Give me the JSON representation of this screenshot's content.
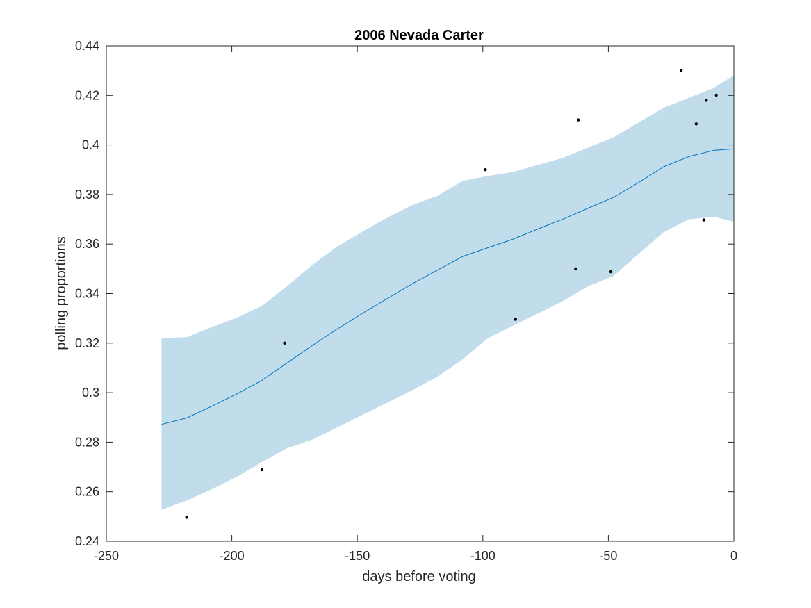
{
  "chart_data": {
    "type": "line",
    "title": "2006 Nevada Carter",
    "xlabel": "days before voting",
    "ylabel": "polling proportions",
    "xlim": [
      -250,
      0
    ],
    "ylim": [
      0.24,
      0.44
    ],
    "xticks": [
      -250,
      -200,
      -150,
      -100,
      -50,
      0
    ],
    "yticks": [
      0.24,
      0.26,
      0.28,
      0.3,
      0.32,
      0.34,
      0.36,
      0.38,
      0.4,
      0.42,
      0.44
    ],
    "xtick_labels": [
      "-250",
      "-200",
      "-150",
      "-100",
      "-50",
      "0"
    ],
    "ytick_labels": [
      "0.24",
      "0.26",
      "0.28",
      "0.3",
      "0.32",
      "0.34",
      "0.36",
      "0.38",
      "0.4",
      "0.42",
      "0.44"
    ],
    "grid": false,
    "colors": {
      "mean_line": "#0072BD",
      "band_fill": "#C1DDEB",
      "points": "#000000",
      "axes": "#262626"
    },
    "series": [
      {
        "kind": "line",
        "x": [
          -228,
          -218,
          -208,
          -198,
          -188,
          -178,
          -168,
          -158,
          -148,
          -138,
          -128,
          -118,
          -108,
          -98,
          -88,
          -78,
          -68,
          -58,
          -48,
          -38,
          -28,
          -18,
          -8,
          0
        ],
        "y": [
          0.2872,
          0.2898,
          0.2945,
          0.2995,
          0.305,
          0.312,
          0.319,
          0.3257,
          0.332,
          0.338,
          0.344,
          0.3495,
          0.355,
          0.3585,
          0.362,
          0.3661,
          0.3701,
          0.3745,
          0.3788,
          0.3848,
          0.3912,
          0.3953,
          0.3978,
          0.3984
        ]
      },
      {
        "kind": "band",
        "x": [
          -228,
          -218,
          -208,
          -198,
          -188,
          -178,
          -168,
          -158,
          -148,
          -138,
          -128,
          -118,
          -108,
          -98,
          -88,
          -78,
          -68,
          -58,
          -48,
          -38,
          -28,
          -18,
          -8,
          0
        ],
        "upper": [
          0.322,
          0.3224,
          0.3265,
          0.3302,
          0.335,
          0.343,
          0.3515,
          0.359,
          0.365,
          0.3707,
          0.3758,
          0.3795,
          0.3855,
          0.3875,
          0.3891,
          0.392,
          0.3948,
          0.399,
          0.403,
          0.409,
          0.415,
          0.419,
          0.423,
          0.4282
        ],
        "lower": [
          0.2527,
          0.2565,
          0.261,
          0.266,
          0.272,
          0.2776,
          0.281,
          0.286,
          0.291,
          0.296,
          0.301,
          0.3065,
          0.3135,
          0.322,
          0.327,
          0.332,
          0.337,
          0.343,
          0.347,
          0.356,
          0.3647,
          0.37,
          0.371,
          0.369
        ]
      },
      {
        "kind": "scatter",
        "x": [
          -218,
          -188,
          -179,
          -99,
          -87,
          -63,
          -62,
          -49,
          -21,
          -15,
          -12,
          -11,
          -7
        ],
        "y": [
          0.2497,
          0.2689,
          0.32,
          0.39,
          0.3296,
          0.35,
          0.4101,
          0.3488,
          0.4301,
          0.4085,
          0.3697,
          0.418,
          0.4201
        ]
      }
    ]
  }
}
